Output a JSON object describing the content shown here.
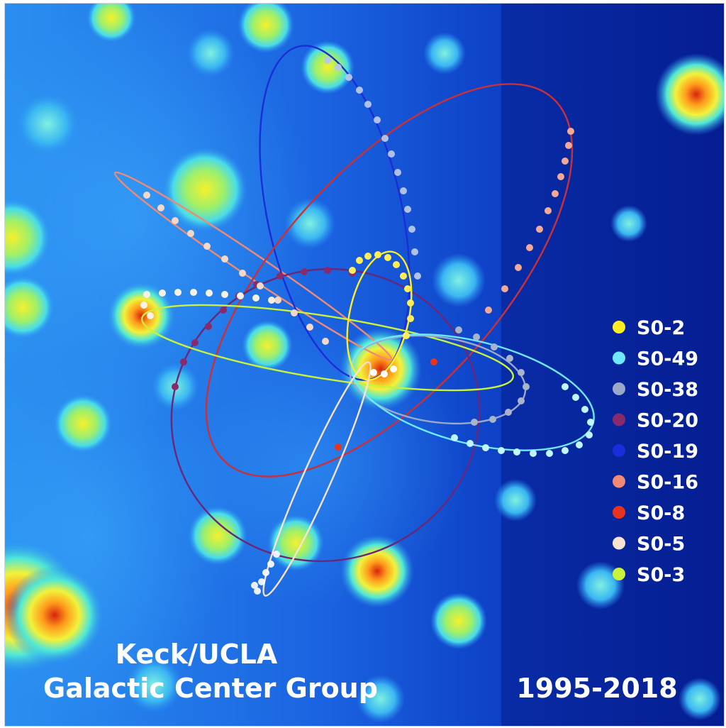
{
  "credit": {
    "line1": "Keck/UCLA",
    "line2": "Galactic Center Group"
  },
  "date_range": "1995-2018",
  "legend": [
    {
      "label": "S0-2",
      "color": "#ffee22"
    },
    {
      "label": "S0-49",
      "color": "#6fe9ff"
    },
    {
      "label": "S0-38",
      "color": "#9aa9c8"
    },
    {
      "label": "S0-20",
      "color": "#8a2a6a"
    },
    {
      "label": "S0-19",
      "color": "#1b2dd8"
    },
    {
      "label": "S0-16",
      "color": "#f08a74"
    },
    {
      "label": "S0-8",
      "color": "#e8341c"
    },
    {
      "label": "S0-5",
      "color": "#f8e2d0"
    },
    {
      "label": "S0-3",
      "color": "#c9f23a"
    }
  ],
  "colors": {
    "background": "#0a2bb4",
    "hot_spot": "#d62a10"
  }
}
